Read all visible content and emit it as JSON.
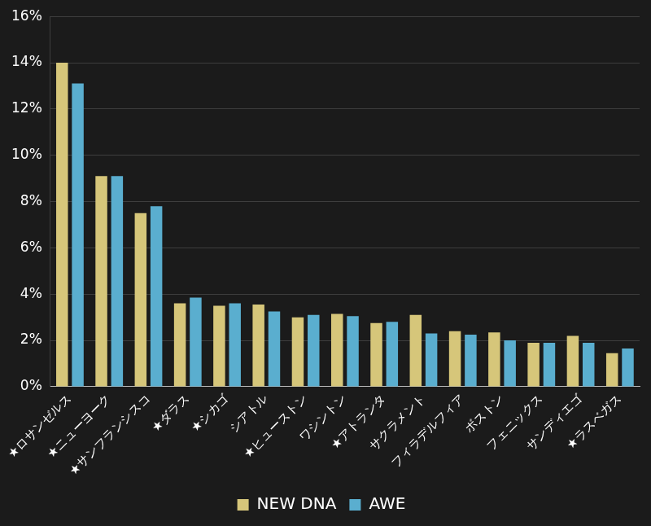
{
  "chart_data": {
    "type": "bar",
    "categories": [
      "★ロサンゼルス",
      "★ニューヨーク",
      "★サンフランシスコ",
      "★ダラス",
      "★シカゴ",
      "シアトル",
      "★ヒューストン",
      "ワシントン",
      "★アトランタ",
      "サクラメント",
      "フィラデルフィア",
      "ボストン",
      "フェニックス",
      "サンディエゴ",
      "★ラスベガス"
    ],
    "series": [
      {
        "name": "NEW DNA",
        "color": "#d6c67a",
        "values": [
          14.0,
          9.1,
          7.5,
          3.6,
          3.5,
          3.55,
          3.0,
          3.15,
          2.75,
          3.1,
          2.4,
          2.35,
          1.9,
          2.2,
          1.45
        ]
      },
      {
        "name": "AWE",
        "color": "#5aaecf",
        "values": [
          13.1,
          9.1,
          7.8,
          3.85,
          3.6,
          3.25,
          3.1,
          3.05,
          2.8,
          2.3,
          2.25,
          2.0,
          1.9,
          1.9,
          1.65
        ]
      }
    ],
    "ylim": [
      0,
      16
    ],
    "yticks": [
      {
        "value": 0,
        "label": "0%"
      },
      {
        "value": 2,
        "label": "2%"
      },
      {
        "value": 4,
        "label": "4%"
      },
      {
        "value": 6,
        "label": "6%"
      },
      {
        "value": 8,
        "label": "8%"
      },
      {
        "value": 10,
        "label": "10%"
      },
      {
        "value": 12,
        "label": "12%"
      },
      {
        "value": 14,
        "label": "14%"
      },
      {
        "value": 16,
        "label": "16%"
      }
    ],
    "grid": true,
    "legend": "bottom"
  }
}
